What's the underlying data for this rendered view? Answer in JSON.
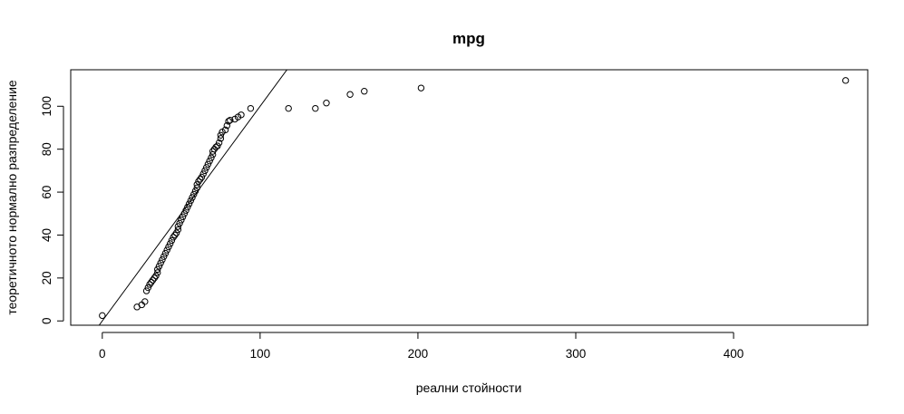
{
  "chart_data": {
    "type": "scatter",
    "title": "mpg",
    "xlabel": "реални стойности",
    "ylabel": "теоретичното нормално разпределение",
    "xlim": [
      -20,
      485
    ],
    "ylim": [
      -2,
      117
    ],
    "xticks": [
      0,
      100,
      200,
      300,
      400
    ],
    "yticks": [
      0,
      20,
      40,
      60,
      80,
      100
    ],
    "grid": false,
    "legend": "none",
    "point_color": "#000000",
    "reference_line": {
      "x": [
        -2,
        117
      ],
      "y": [
        -2,
        117
      ]
    },
    "series": [
      {
        "points": [
          [
            0,
            2.5
          ],
          [
            22,
            6.5
          ],
          [
            25,
            7.5
          ],
          [
            27,
            9
          ],
          [
            28,
            14
          ],
          [
            29,
            15.5
          ],
          [
            30,
            17
          ],
          [
            31,
            18
          ],
          [
            32,
            19
          ],
          [
            33,
            20
          ],
          [
            34,
            21
          ],
          [
            35,
            22.5
          ],
          [
            35,
            24
          ],
          [
            36,
            25.5
          ],
          [
            37,
            27
          ],
          [
            38,
            28.5
          ],
          [
            39,
            30
          ],
          [
            40,
            31.5
          ],
          [
            41,
            33
          ],
          [
            42,
            34.5
          ],
          [
            43,
            36
          ],
          [
            44,
            37.5
          ],
          [
            45,
            39
          ],
          [
            46,
            40
          ],
          [
            47,
            41
          ],
          [
            48,
            42.5
          ],
          [
            48,
            44
          ],
          [
            49,
            45.5
          ],
          [
            50,
            47
          ],
          [
            51,
            48.5
          ],
          [
            52,
            50
          ],
          [
            53,
            51.5
          ],
          [
            54,
            53
          ],
          [
            55,
            54.5
          ],
          [
            56,
            56
          ],
          [
            57,
            57.5
          ],
          [
            58,
            59
          ],
          [
            59,
            60.5
          ],
          [
            60,
            62
          ],
          [
            60,
            63.5
          ],
          [
            61,
            65
          ],
          [
            62,
            66
          ],
          [
            63,
            67
          ],
          [
            64,
            68.5
          ],
          [
            65,
            70
          ],
          [
            66,
            71.5
          ],
          [
            67,
            73
          ],
          [
            68,
            74.5
          ],
          [
            69,
            76
          ],
          [
            70,
            77.5
          ],
          [
            70,
            79
          ],
          [
            71,
            80
          ],
          [
            72,
            81
          ],
          [
            73,
            81.5
          ],
          [
            74,
            83
          ],
          [
            75,
            85
          ],
          [
            75,
            86.5
          ],
          [
            76,
            88
          ],
          [
            78,
            89
          ],
          [
            79,
            91
          ],
          [
            80,
            93
          ],
          [
            81,
            93.5
          ],
          [
            84,
            94
          ],
          [
            86,
            95
          ],
          [
            88,
            96
          ],
          [
            94,
            99
          ],
          [
            118,
            99
          ],
          [
            135,
            99
          ],
          [
            142,
            101.5
          ],
          [
            157,
            105.5
          ],
          [
            166,
            107
          ],
          [
            202,
            108.5
          ],
          [
            471,
            112
          ]
        ]
      }
    ]
  }
}
